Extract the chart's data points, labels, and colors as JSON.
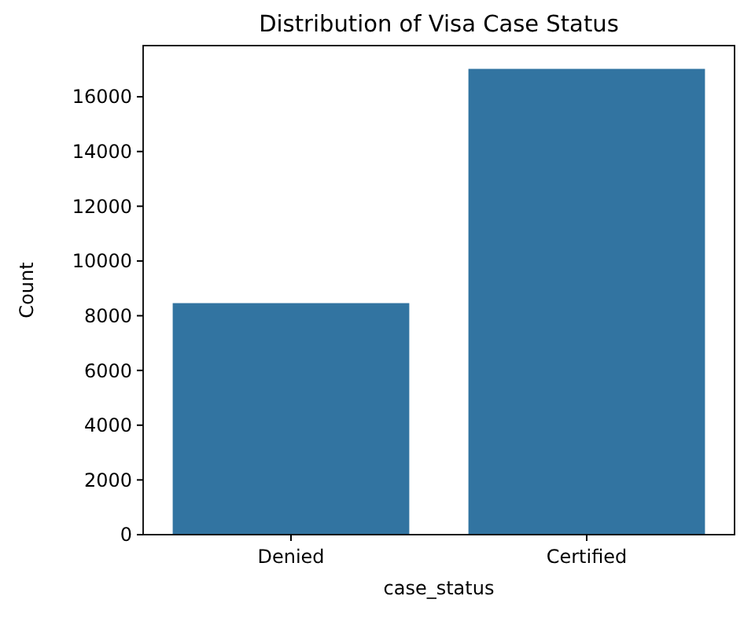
{
  "chart_data": {
    "type": "bar",
    "title": "Distribution of Visa Case Status",
    "xlabel": "case_status",
    "ylabel": "Count",
    "categories": [
      "Denied",
      "Certified"
    ],
    "values": [
      8460,
      17020
    ],
    "color": "#3274a1",
    "ylim": [
      0,
      17870
    ],
    "yticks": [
      0,
      2000,
      4000,
      6000,
      8000,
      10000,
      12000,
      14000,
      16000
    ],
    "grid": false
  }
}
